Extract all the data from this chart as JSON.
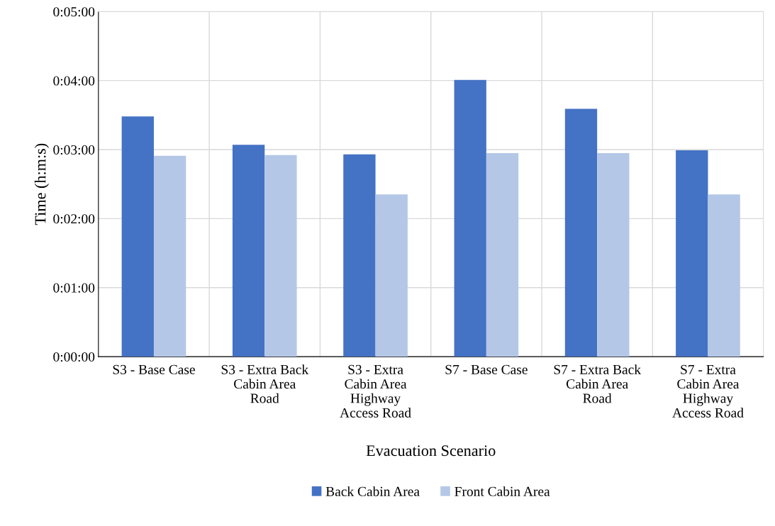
{
  "chart_data": {
    "type": "bar",
    "xlabel": "Evacuation Scenario",
    "ylabel": "Time (h:m:s)",
    "categories": [
      "S3 - Base Case",
      "S3 - Extra Back\nCabin Area\nRoad",
      "S3 - Extra\nCabin Area\nHighway\nAccess Road",
      "S7 - Base Case",
      "S7 - Extra Back\nCabin Area\nRoad",
      "S7 - Extra\nCabin Area\nHighway\nAccess Road"
    ],
    "series": [
      {
        "name": "Back Cabin Area",
        "color": "#4472c4",
        "values": [
          3.48,
          3.07,
          2.93,
          4.01,
          3.59,
          2.99
        ]
      },
      {
        "name": "Front Cabin Area",
        "color": "#b4c7e7",
        "values": [
          2.91,
          2.92,
          2.35,
          2.95,
          2.95,
          2.35
        ]
      }
    ],
    "ylim": [
      0,
      5
    ],
    "yticks": [
      {
        "value": 0,
        "label": "0:00:00"
      },
      {
        "value": 1,
        "label": "0:01:00"
      },
      {
        "value": 2,
        "label": "0:02:00"
      },
      {
        "value": 3,
        "label": "0:03:00"
      },
      {
        "value": 4,
        "label": "0:04:00"
      },
      {
        "value": 5,
        "label": "0:05:00"
      }
    ],
    "grid": true,
    "legend": "bottom"
  }
}
